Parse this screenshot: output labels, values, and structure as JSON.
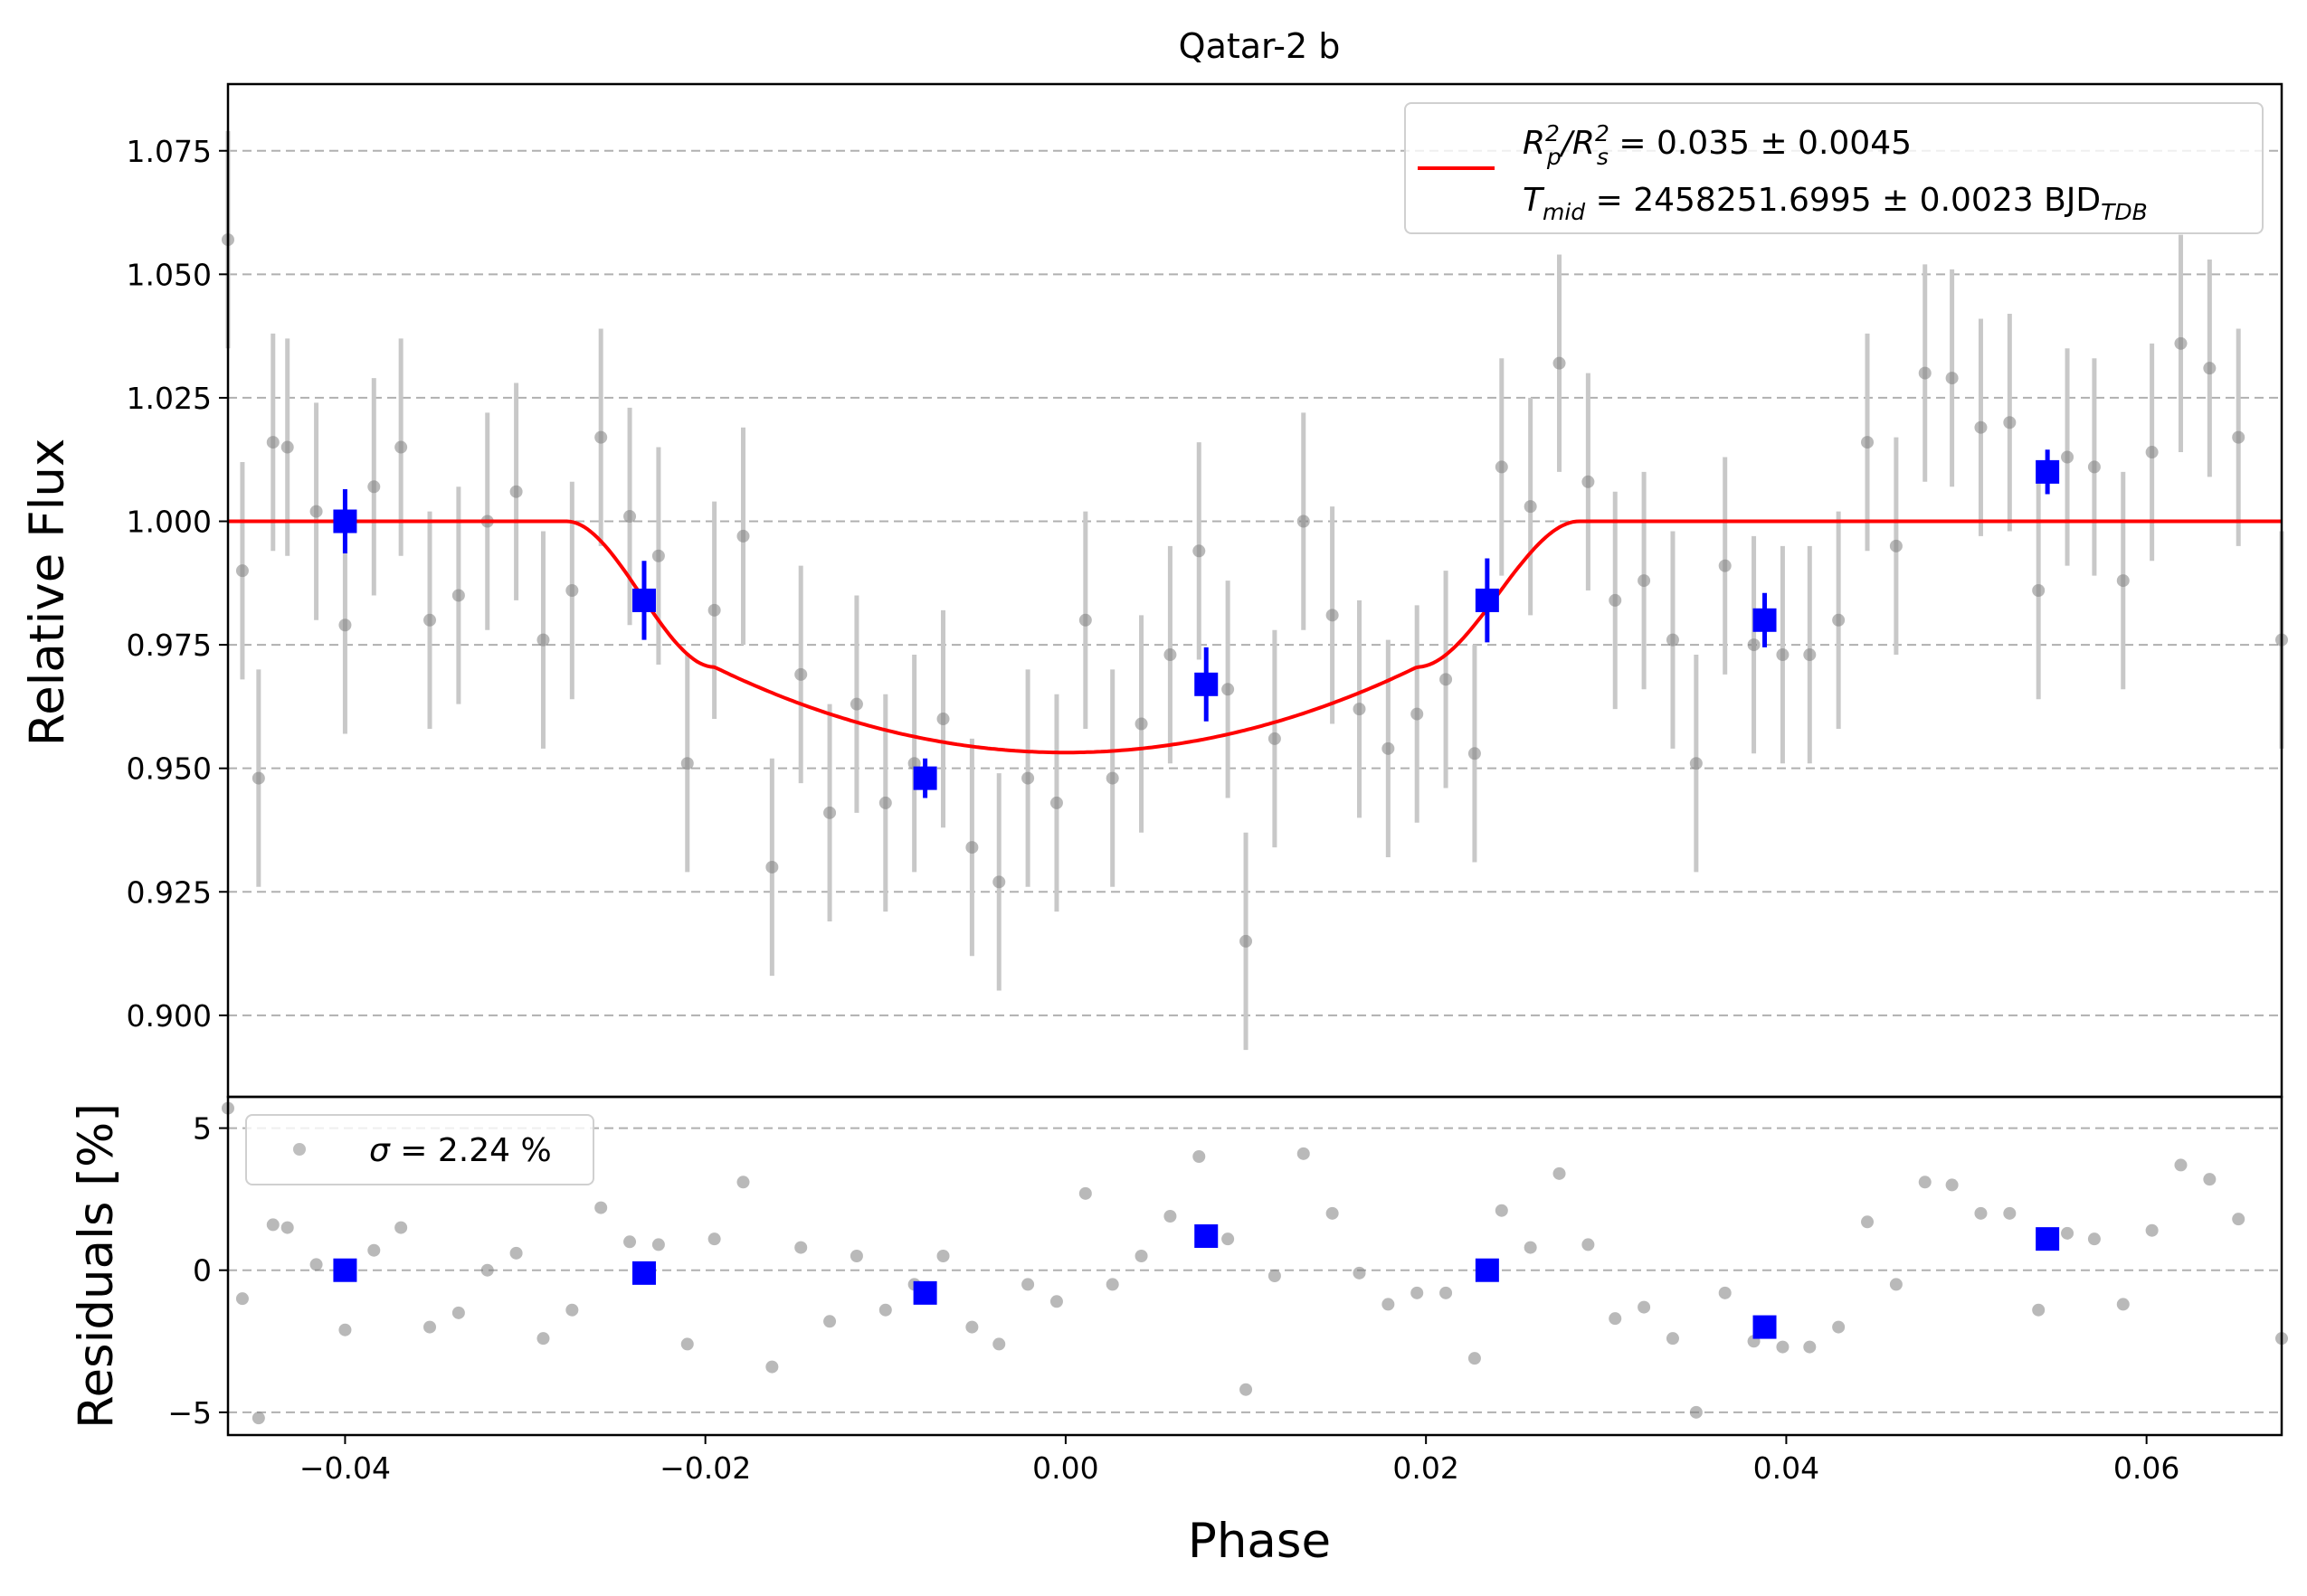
{
  "chart_data": [
    {
      "type": "scatter",
      "panel": "flux",
      "title": "Qatar-2 b",
      "xlabel": "",
      "ylabel": "Relative Flux",
      "xlim": [
        -0.0465,
        0.0675
      ],
      "ylim": [
        0.8835,
        1.0885
      ],
      "grid": "y-dashed",
      "yticks": [
        "0.900",
        "0.925",
        "0.950",
        "0.975",
        "1.000",
        "1.025",
        "1.050",
        "1.075"
      ],
      "legend": {
        "placement": "top-right",
        "line1": {
          "base": "R",
          "sub1": "p",
          "sup1": "2",
          "slash": "/R",
          "sub2": "s",
          "sup2": "2",
          "rest": " = 0.035 ± 0.0045"
        },
        "line2": {
          "base": "T",
          "sub": "mid",
          "rest": " = 2458251.6995 ± 0.0023 BJD",
          "sub2": "TDB"
        }
      },
      "colors": {
        "model": "#ff0000",
        "binned": "#0000ff",
        "raw": "#808080",
        "raw_err": "#c8c8c8",
        "grid": "#b0b0b0"
      },
      "model": {
        "baseline": 1.0,
        "depth_center": 0.9532,
        "center": 0.0,
        "t1": -0.0277,
        "t2": -0.0195,
        "t3": 0.0195,
        "t4": 0.0285,
        "flux_at_t2": 0.9705
      },
      "raw_points": [
        [
          -0.0465,
          1.057,
          0.022
        ],
        [
          -0.0457,
          0.99,
          0.022
        ],
        [
          -0.0448,
          0.948,
          0.022
        ],
        [
          -0.044,
          1.016,
          0.022
        ],
        [
          -0.0432,
          1.015,
          0.022
        ],
        [
          -0.0416,
          1.002,
          0.022
        ],
        [
          -0.04,
          0.979,
          0.022
        ],
        [
          -0.0384,
          1.007,
          0.022
        ],
        [
          -0.0369,
          1.015,
          0.022
        ],
        [
          -0.0353,
          0.98,
          0.022
        ],
        [
          -0.0337,
          0.985,
          0.022
        ],
        [
          -0.0321,
          1.0,
          0.022
        ],
        [
          -0.0305,
          1.006,
          0.022
        ],
        [
          -0.029,
          0.976,
          0.022
        ],
        [
          -0.0274,
          0.986,
          0.022
        ],
        [
          -0.0258,
          1.017,
          0.022
        ],
        [
          -0.0242,
          1.001,
          0.022
        ],
        [
          -0.0226,
          0.993,
          0.022
        ],
        [
          -0.021,
          0.951,
          0.022
        ],
        [
          -0.0195,
          0.982,
          0.022
        ],
        [
          -0.0179,
          0.997,
          0.022
        ],
        [
          -0.0163,
          0.93,
          0.022
        ],
        [
          -0.0147,
          0.969,
          0.022
        ],
        [
          -0.0131,
          0.941,
          0.022
        ],
        [
          -0.0116,
          0.963,
          0.022
        ],
        [
          -0.01,
          0.943,
          0.022
        ],
        [
          -0.0084,
          0.951,
          0.022
        ],
        [
          -0.0068,
          0.96,
          0.022
        ],
        [
          -0.0052,
          0.934,
          0.022
        ],
        [
          -0.0037,
          0.927,
          0.022
        ],
        [
          -0.0021,
          0.948,
          0.022
        ],
        [
          -0.0005,
          0.943,
          0.022
        ],
        [
          0.0011,
          0.98,
          0.022
        ],
        [
          0.0026,
          0.948,
          0.022
        ],
        [
          0.0042,
          0.959,
          0.022
        ],
        [
          0.0058,
          0.973,
          0.022
        ],
        [
          0.0074,
          0.994,
          0.022
        ],
        [
          0.009,
          0.966,
          0.022
        ],
        [
          0.01,
          0.915,
          0.022
        ],
        [
          0.0116,
          0.956,
          0.022
        ],
        [
          0.0132,
          1.0,
          0.022
        ],
        [
          0.0148,
          0.981,
          0.022
        ],
        [
          0.0163,
          0.962,
          0.022
        ],
        [
          0.0179,
          0.954,
          0.022
        ],
        [
          0.0195,
          0.961,
          0.022
        ],
        [
          0.0211,
          0.968,
          0.022
        ],
        [
          0.0227,
          0.953,
          0.022
        ],
        [
          0.0242,
          1.011,
          0.022
        ],
        [
          0.0258,
          1.003,
          0.022
        ],
        [
          0.0274,
          1.032,
          0.022
        ],
        [
          0.029,
          1.008,
          0.022
        ],
        [
          0.0305,
          0.984,
          0.022
        ],
        [
          0.0321,
          0.988,
          0.022
        ],
        [
          0.0337,
          0.976,
          0.022
        ],
        [
          0.035,
          0.951,
          0.022
        ],
        [
          0.0366,
          0.991,
          0.022
        ],
        [
          0.0382,
          0.975,
          0.022
        ],
        [
          0.0398,
          0.973,
          0.022
        ],
        [
          0.0413,
          0.973,
          0.022
        ],
        [
          0.0429,
          0.98,
          0.022
        ],
        [
          0.0445,
          1.016,
          0.022
        ],
        [
          0.0461,
          0.995,
          0.022
        ],
        [
          0.0477,
          1.03,
          0.022
        ],
        [
          0.0492,
          1.029,
          0.022
        ],
        [
          0.0508,
          1.019,
          0.022
        ],
        [
          0.0524,
          1.02,
          0.022
        ],
        [
          0.054,
          0.986,
          0.022
        ],
        [
          0.0556,
          1.013,
          0.022
        ],
        [
          0.0571,
          1.011,
          0.022
        ],
        [
          0.0587,
          0.988,
          0.022
        ],
        [
          0.0603,
          1.014,
          0.022
        ],
        [
          0.0619,
          1.036,
          0.022
        ],
        [
          0.0635,
          1.031,
          0.022
        ],
        [
          0.0651,
          1.017,
          0.022
        ],
        [
          0.0675,
          0.976,
          0.022
        ]
      ],
      "binned_points": [
        [
          -0.04,
          1.0,
          0.0065
        ],
        [
          -0.0234,
          0.984,
          0.008
        ],
        [
          -0.0078,
          0.948,
          0.004
        ],
        [
          0.0078,
          0.967,
          0.0075
        ],
        [
          0.0234,
          0.984,
          0.0085
        ],
        [
          0.0388,
          0.98,
          0.0055
        ],
        [
          0.0545,
          1.01,
          0.0045
        ]
      ]
    },
    {
      "type": "scatter",
      "panel": "residuals",
      "xlabel": "Phase",
      "ylabel": "Residuals [%]",
      "xlim": [
        -0.0465,
        0.0675
      ],
      "ylim": [
        -5.8,
        6.1
      ],
      "grid": "y-dashed",
      "xticks": [
        "−0.04",
        "−0.02",
        "0.00",
        "0.02",
        "0.04",
        "0.06"
      ],
      "xtick_values": [
        -0.04,
        -0.02,
        0.0,
        0.02,
        0.04,
        0.06
      ],
      "yticks": [
        "−5",
        "0",
        "5"
      ],
      "ytick_values": [
        -5,
        0,
        5
      ],
      "legend": {
        "placement": "top-left",
        "symbol": "σ",
        "rest": " = 2.24 %"
      },
      "raw_points": [
        [
          -0.0465,
          5.7
        ],
        [
          -0.0457,
          -1.0
        ],
        [
          -0.0448,
          -5.2
        ],
        [
          -0.044,
          1.6
        ],
        [
          -0.0432,
          1.5
        ],
        [
          -0.0416,
          0.2
        ],
        [
          -0.04,
          -2.1
        ],
        [
          -0.0384,
          0.7
        ],
        [
          -0.0369,
          1.5
        ],
        [
          -0.0353,
          -2.0
        ],
        [
          -0.0337,
          -1.5
        ],
        [
          -0.0321,
          0.0
        ],
        [
          -0.0305,
          0.6
        ],
        [
          -0.029,
          -2.4
        ],
        [
          -0.0274,
          -1.4
        ],
        [
          -0.0258,
          2.2
        ],
        [
          -0.0242,
          1.0
        ],
        [
          -0.0226,
          0.9
        ],
        [
          -0.021,
          -2.6
        ],
        [
          -0.0195,
          1.1
        ],
        [
          -0.0179,
          3.1
        ],
        [
          -0.0163,
          -3.4
        ],
        [
          -0.0147,
          0.8
        ],
        [
          -0.0131,
          -1.8
        ],
        [
          -0.0116,
          0.5
        ],
        [
          -0.01,
          -1.4
        ],
        [
          -0.0084,
          -0.5
        ],
        [
          -0.0068,
          0.5
        ],
        [
          -0.0052,
          -2.0
        ],
        [
          -0.0037,
          -2.6
        ],
        [
          -0.0021,
          -0.5
        ],
        [
          -0.0005,
          -1.1
        ],
        [
          0.0011,
          2.7
        ],
        [
          0.0026,
          -0.5
        ],
        [
          0.0042,
          0.5
        ],
        [
          0.0058,
          1.9
        ],
        [
          0.0074,
          4.0
        ],
        [
          0.009,
          1.1
        ],
        [
          0.01,
          -4.2
        ],
        [
          0.0116,
          -0.2
        ],
        [
          0.0132,
          4.1
        ],
        [
          0.0148,
          2.0
        ],
        [
          0.0163,
          -0.1
        ],
        [
          0.0179,
          -1.2
        ],
        [
          0.0195,
          -0.8
        ],
        [
          0.0211,
          -0.8
        ],
        [
          0.0227,
          -3.1
        ],
        [
          0.0242,
          2.1
        ],
        [
          0.0258,
          0.8
        ],
        [
          0.0274,
          3.4
        ],
        [
          0.029,
          0.9
        ],
        [
          0.0305,
          -1.7
        ],
        [
          0.0321,
          -1.3
        ],
        [
          0.0337,
          -2.4
        ],
        [
          0.035,
          -5.0
        ],
        [
          0.0366,
          -0.8
        ],
        [
          0.0382,
          -2.5
        ],
        [
          0.0398,
          -2.7
        ],
        [
          0.0413,
          -2.7
        ],
        [
          0.0429,
          -2.0
        ],
        [
          0.0445,
          1.7
        ],
        [
          0.0461,
          -0.5
        ],
        [
          0.0477,
          3.1
        ],
        [
          0.0492,
          3.0
        ],
        [
          0.0508,
          2.0
        ],
        [
          0.0524,
          2.0
        ],
        [
          0.054,
          -1.4
        ],
        [
          0.0556,
          1.3
        ],
        [
          0.0571,
          1.1
        ],
        [
          0.0587,
          -1.2
        ],
        [
          0.0603,
          1.4
        ],
        [
          0.0619,
          3.7
        ],
        [
          0.0635,
          3.2
        ],
        [
          0.0651,
          1.8
        ],
        [
          0.0675,
          -2.4
        ]
      ],
      "binned_points": [
        [
          -0.04,
          0.0
        ],
        [
          -0.0234,
          -0.1
        ],
        [
          -0.0078,
          -0.8
        ],
        [
          0.0078,
          1.2
        ],
        [
          0.0234,
          0.0
        ],
        [
          0.0388,
          -2.0
        ],
        [
          0.0545,
          1.1
        ]
      ]
    }
  ]
}
